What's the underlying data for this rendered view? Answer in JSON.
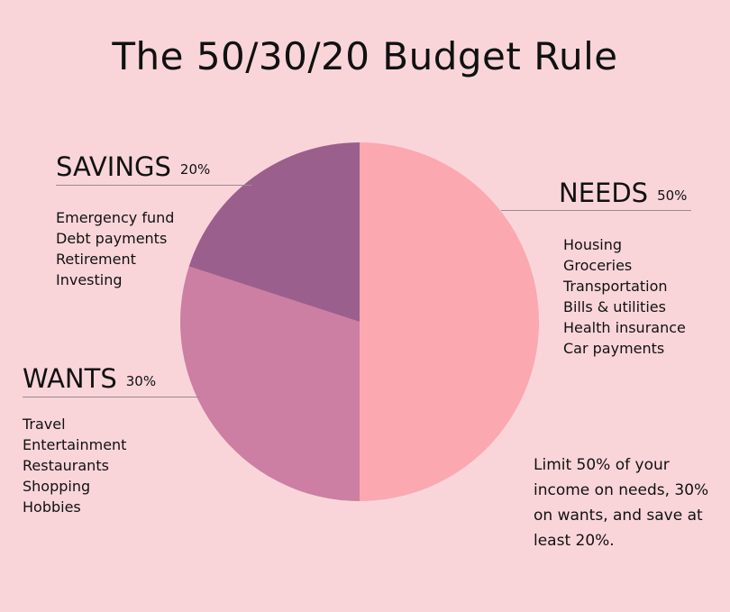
{
  "colors": {
    "background": "#f9d5da",
    "needs": "#fba8b0",
    "wants": "#cc7fa2",
    "savings": "#9a5f8d"
  },
  "title": "The 50/30/20 Budget Rule",
  "chart_data": {
    "type": "pie",
    "slices": [
      {
        "label": "NEEDS",
        "percent_label": "50%",
        "value": 50,
        "items": [
          "Housing",
          "Groceries",
          "Transportation",
          "Bills & utilities",
          "Health insurance",
          "Car payments"
        ]
      },
      {
        "label": "WANTS",
        "percent_label": "30%",
        "value": 30,
        "items": [
          "Travel",
          "Entertainment",
          "Restaurants",
          "Shopping",
          "Hobbies"
        ]
      },
      {
        "label": "SAVINGS",
        "percent_label": "20%",
        "value": 20,
        "items": [
          "Emergency fund",
          "Debt payments",
          "Retirement",
          "Investing"
        ]
      }
    ]
  },
  "note": "Limit 50% of your income on needs, 30% on wants, and save at least 20%."
}
